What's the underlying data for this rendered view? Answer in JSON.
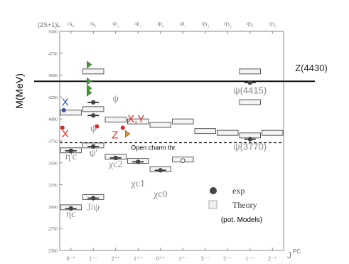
{
  "chart_data": {
    "type": "scatter",
    "ylabel": "M(MeV)",
    "ylim": [
      2500,
      5000
    ],
    "yticks": [
      2500,
      2750,
      3000,
      3250,
      3500,
      3750,
      4000,
      4250,
      4500,
      4750,
      5000
    ],
    "top_prefix": "(2S+1)L",
    "top_labels": [
      "¹S₀",
      "³S₁",
      "³P₂",
      "³P₁",
      "³P₀",
      "¹P₁",
      "³D₃",
      "³D₂",
      "³D₁",
      "¹D₂"
    ],
    "categories": [
      "0⁻⁺",
      "1⁻⁻",
      "2⁺⁺",
      "1⁺⁺",
      "0⁺⁺",
      "1⁺⁻",
      "3⁻⁻",
      "2⁻⁻",
      "1⁻⁻",
      "2⁻⁺"
    ],
    "xlabel": "J",
    "xlabel_sup": "PC",
    "series": [
      {
        "name": "exp",
        "points": [
          {
            "col": 0,
            "mass": 2980
          },
          {
            "col": 1,
            "mass": 3097
          },
          {
            "col": 2,
            "mass": 3556
          },
          {
            "col": 3,
            "mass": 3511
          },
          {
            "col": 4,
            "mass": 3415
          },
          {
            "col": 0,
            "mass": 3637
          },
          {
            "col": 1,
            "mass": 3686
          },
          {
            "col": 1,
            "mass": 4040
          },
          {
            "col": 1,
            "mass": 4190
          },
          {
            "col": 8,
            "mass": 3770
          },
          {
            "col": 8,
            "mass": 4415
          }
        ]
      },
      {
        "name": "Theory",
        "levels": [
          {
            "col": 0,
            "mass": 2980
          },
          {
            "col": 1,
            "mass": 3097
          },
          {
            "col": 2,
            "mass": 3556
          },
          {
            "col": 3,
            "mass": 3510
          },
          {
            "col": 4,
            "mass": 3415
          },
          {
            "col": 5,
            "mass": 3525
          },
          {
            "col": 0,
            "mass": 3630
          },
          {
            "col": 1,
            "mass": 3686
          },
          {
            "col": 2,
            "mass": 3980
          },
          {
            "col": 3,
            "mass": 3960
          },
          {
            "col": 4,
            "mass": 3920
          },
          {
            "col": 5,
            "mass": 3960
          },
          {
            "col": 6,
            "mass": 3850
          },
          {
            "col": 7,
            "mass": 3830
          },
          {
            "col": 8,
            "mass": 3800
          },
          {
            "col": 9,
            "mass": 3830
          },
          {
            "col": 0,
            "mass": 4060
          },
          {
            "col": 1,
            "mass": 4100
          },
          {
            "col": 1,
            "mass": 4530
          },
          {
            "col": 8,
            "mass": 4180
          },
          {
            "col": 8,
            "mass": 4530
          }
        ]
      }
    ],
    "exotic_points": [
      {
        "label": "X",
        "col": 0,
        "mass": 4100,
        "color": "#3b4fa0"
      },
      {
        "label": "X,Y",
        "col": 0,
        "mass": 3900,
        "color": "#d42a2a"
      },
      {
        "label": "X,Y",
        "col": 2,
        "mass": 3915,
        "color": "#d42a2a"
      },
      {
        "label": "X,Y",
        "col": 3,
        "mass": 3900,
        "color": "#d42a2a"
      },
      {
        "label": "Z",
        "col": 2,
        "mass": 3830,
        "color": "#e0902a"
      },
      {
        "label": "Z",
        "col": 2,
        "mass": 4300,
        "color": "#4a9a3a"
      },
      {
        "label": "Z",
        "col": 2,
        "mass": 4350,
        "color": "#4a9a3a"
      },
      {
        "label": "Z",
        "col": 2,
        "mass": 4430,
        "color": "#4a9a3a"
      },
      {
        "label": "Z",
        "col": 2,
        "mass": 4620,
        "color": "#4a9a3a"
      }
    ],
    "reference_lines": [
      {
        "mass": 4430,
        "label": "Z(4430)",
        "style": "solid"
      },
      {
        "mass": 3730,
        "label": "Open charm thr.",
        "style": "dashed"
      }
    ],
    "annotations": [
      {
        "text": "ηc",
        "col": 0,
        "mass": 2880
      },
      {
        "text": "J/ψ",
        "col": 1,
        "mass": 2960
      },
      {
        "text": "χc2",
        "col": 2,
        "mass": 3450
      },
      {
        "text": "χc1",
        "col": 3,
        "mass": 3230
      },
      {
        "text": "χc0",
        "col": 4,
        "mass": 3110
      },
      {
        "text": "η'c",
        "col": 0,
        "mass": 3540
      },
      {
        "text": "ψ'",
        "col": 1,
        "mass": 3580
      },
      {
        "text": "ψ",
        "col": 1,
        "mass": 3860
      },
      {
        "text": "ψ",
        "col": 2,
        "mass": 4200
      },
      {
        "text": "ψ(4415)",
        "col": 8,
        "mass": 4290
      },
      {
        "text": "ψ(3770)",
        "col": 8,
        "mass": 3650
      },
      {
        "text": "X",
        "col": 0,
        "mass": 4150
      },
      {
        "text": "X",
        "col": 0,
        "mass": 3790
      },
      {
        "text": "X,Y",
        "col": 3,
        "mass": 3960
      },
      {
        "text": "Z",
        "col": 2,
        "mass": 3780
      }
    ],
    "legend": {
      "position": "bottom-right",
      "exp_label": "exp",
      "theory_label": "Theory",
      "note": "(pot. Models)"
    },
    "colors": {
      "axis": "#888888",
      "exp": "#444444",
      "theory_box": "#f4f4f4",
      "label_gray": "#888888"
    }
  }
}
